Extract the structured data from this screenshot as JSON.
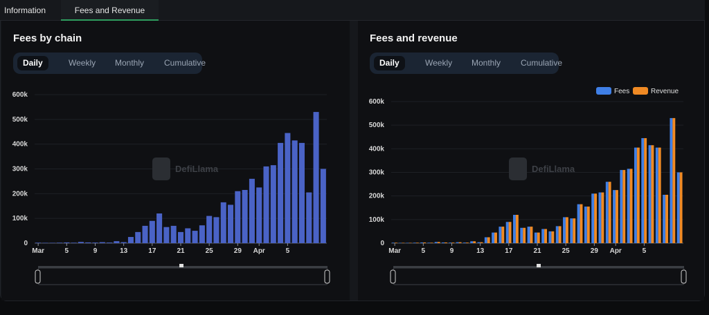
{
  "tabs": [
    {
      "label": "Information"
    },
    {
      "label": "Fees and Revenue"
    }
  ],
  "periods": [
    "Daily",
    "Weekly",
    "Monthly",
    "Cumulative"
  ],
  "colors": {
    "fees_by_chain_bar": "#4a63c6",
    "fees": "#3f7fe6",
    "revenue": "#f08a24",
    "tab_underline": "#2f9e5f"
  },
  "watermark": "DefiLlama",
  "x_ticks": [
    "Mar",
    "5",
    "9",
    "13",
    "17",
    "21",
    "25",
    "29",
    "Apr",
    "5"
  ],
  "y_ticks": [
    "0",
    "100k",
    "200k",
    "300k",
    "400k",
    "500k",
    "600k"
  ],
  "charts": [
    {
      "title": "Fees by chain",
      "chart_data": {
        "type": "bar",
        "ylim": [
          0,
          600000
        ],
        "x_tick_labels": [
          "Mar",
          "5",
          "9",
          "13",
          "17",
          "21",
          "25",
          "29",
          "Apr",
          "5"
        ],
        "y_tick_labels": [
          "0",
          "100k",
          "200k",
          "300k",
          "400k",
          "500k",
          "600k"
        ],
        "values": [
          2000,
          1500,
          1500,
          2000,
          3000,
          2000,
          5000,
          3000,
          2500,
          4000,
          2500,
          8000,
          4000,
          25000,
          45000,
          70000,
          90000,
          120000,
          65000,
          70000,
          45000,
          60000,
          50000,
          72000,
          110000,
          105000,
          165000,
          155000,
          210000,
          215000,
          260000,
          225000,
          310000,
          315000,
          405000,
          445000,
          415000,
          405000,
          205000,
          530000,
          300000
        ],
        "grid": true,
        "legend": "none"
      }
    },
    {
      "title": "Fees and revenue",
      "chart_data": {
        "type": "bar",
        "ylim": [
          0,
          600000
        ],
        "x_tick_labels": [
          "Mar",
          "5",
          "9",
          "13",
          "17",
          "21",
          "25",
          "29",
          "Apr",
          "5"
        ],
        "y_tick_labels": [
          "0",
          "100k",
          "200k",
          "300k",
          "400k",
          "500k",
          "600k"
        ],
        "series": [
          {
            "name": "Fees",
            "values": [
              2000,
              1500,
              1500,
              2000,
              3000,
              2000,
              5000,
              3000,
              2500,
              4000,
              2500,
              8000,
              4000,
              25000,
              45000,
              70000,
              90000,
              120000,
              65000,
              70000,
              45000,
              60000,
              50000,
              72000,
              110000,
              105000,
              165000,
              155000,
              210000,
              215000,
              260000,
              225000,
              310000,
              315000,
              405000,
              445000,
              415000,
              405000,
              205000,
              530000,
              300000
            ]
          },
          {
            "name": "Revenue",
            "values": [
              2000,
              1500,
              1500,
              2000,
              3000,
              2000,
              5000,
              3000,
              2500,
              4000,
              2500,
              8000,
              4000,
              25000,
              45000,
              70000,
              90000,
              120000,
              65000,
              70000,
              45000,
              60000,
              50000,
              72000,
              110000,
              105000,
              165000,
              155000,
              210000,
              215000,
              260000,
              225000,
              310000,
              315000,
              405000,
              445000,
              415000,
              405000,
              205000,
              530000,
              300000
            ]
          }
        ],
        "grid": true,
        "legend": "top-right"
      }
    }
  ]
}
